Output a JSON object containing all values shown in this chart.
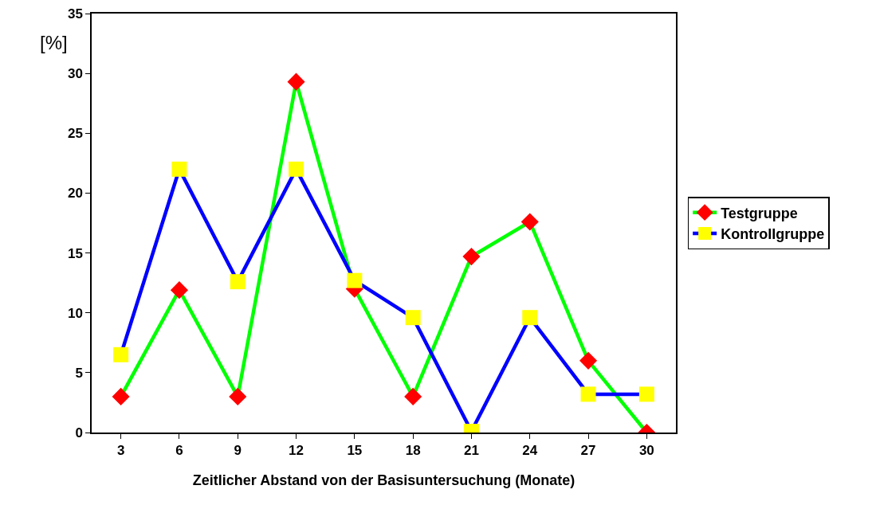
{
  "chart_data": {
    "type": "line",
    "xlabel": "Zeitlicher Abstand von der Basisuntersuchung (Monate)",
    "ylabel": "[%]",
    "categories": [
      "3",
      "6",
      "9",
      "12",
      "15",
      "18",
      "21",
      "24",
      "27",
      "30"
    ],
    "series": [
      {
        "name": "Testgruppe",
        "color": "#00ff00",
        "marker": "diamond",
        "colors": [
          "#ff0000",
          "#ff0000",
          "#ff0000",
          "#ff0000",
          "#ff0000",
          "#ff0000",
          "#ff0000",
          "#ff0000",
          "#ff0000",
          "#ff0000"
        ],
        "values": [
          3.0,
          11.9,
          3.0,
          29.3,
          12.0,
          3.0,
          14.7,
          17.6,
          6.0,
          0
        ]
      },
      {
        "name": "Kontrollgruppe",
        "color": "#0000ff",
        "marker": "square",
        "colors": [
          "#ffff00",
          "#ffff00",
          "#ffff00",
          "#ffff00",
          "#ffff00",
          "#ffff00",
          "#ffff00",
          "#ffff00",
          "#ffff00",
          "#ffff00"
        ],
        "values": [
          6.5,
          22.0,
          12.6,
          22.0,
          12.7,
          9.6,
          0.1,
          9.6,
          3.2,
          3.2
        ]
      }
    ],
    "ylim": [
      0,
      35
    ],
    "yticks": [
      0,
      5,
      10,
      15,
      20,
      25,
      30,
      35
    ],
    "grid": false,
    "legend": "right",
    "line_style": "solid"
  }
}
